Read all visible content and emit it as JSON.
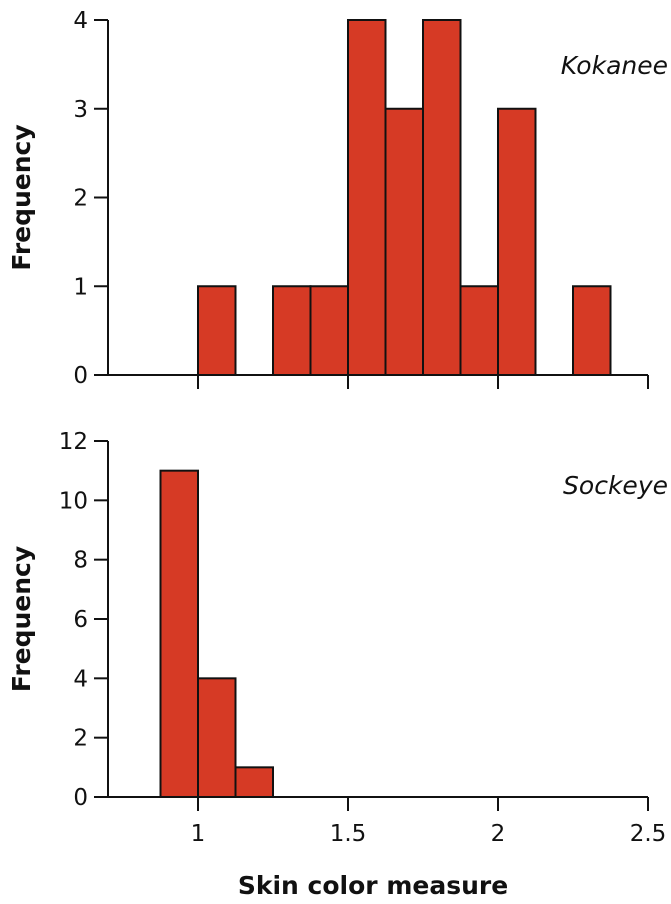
{
  "chart_data": [
    {
      "type": "bar",
      "subtype": "histogram",
      "annotation": "Kokanee",
      "ylabel": "Frequency",
      "xlabel": "",
      "xlim": [
        0.7,
        2.5
      ],
      "ylim": [
        0,
        4
      ],
      "x_ticks": [
        1,
        1.5,
        2
      ],
      "x_tick_labels_shown": false,
      "y_ticks": [
        0,
        1,
        2,
        3,
        4
      ],
      "bin_width": 0.125,
      "bins": [
        {
          "start": 1.0,
          "end": 1.125,
          "count": 1
        },
        {
          "start": 1.25,
          "end": 1.375,
          "count": 1
        },
        {
          "start": 1.375,
          "end": 1.5,
          "count": 1
        },
        {
          "start": 1.5,
          "end": 1.625,
          "count": 4
        },
        {
          "start": 1.625,
          "end": 1.75,
          "count": 3
        },
        {
          "start": 1.75,
          "end": 1.875,
          "count": 4
        },
        {
          "start": 1.875,
          "end": 2.0,
          "count": 1
        },
        {
          "start": 2.0,
          "end": 2.125,
          "count": 3
        },
        {
          "start": 2.25,
          "end": 2.375,
          "count": 1
        }
      ],
      "bar_color": "#d63a25",
      "grid": false
    },
    {
      "type": "bar",
      "subtype": "histogram",
      "annotation": "Sockeye",
      "ylabel": "Frequency",
      "xlabel": "Skin color measure",
      "xlim": [
        0.7,
        2.5
      ],
      "ylim": [
        0,
        12
      ],
      "x_ticks": [
        1,
        1.5,
        2,
        2.5
      ],
      "x_tick_labels": [
        "1",
        "1.5",
        "2",
        "2.5"
      ],
      "y_ticks": [
        0,
        2,
        4,
        6,
        8,
        10,
        12
      ],
      "bin_width": 0.125,
      "bins": [
        {
          "start": 0.875,
          "end": 1.0,
          "count": 11
        },
        {
          "start": 1.0,
          "end": 1.125,
          "count": 4
        },
        {
          "start": 1.125,
          "end": 1.25,
          "count": 1
        }
      ],
      "bar_color": "#d63a25",
      "grid": false
    }
  ]
}
